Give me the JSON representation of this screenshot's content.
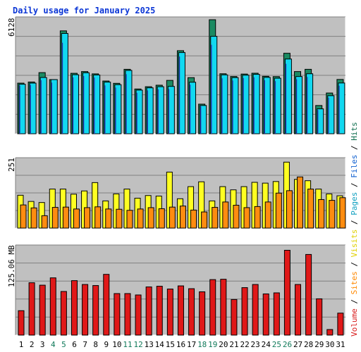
{
  "title": "Daily usage for January 2025",
  "legend": [
    {
      "label": "Volume",
      "color": "#d81818"
    },
    {
      "label": "Sites",
      "color": "#ff8800"
    },
    {
      "label": "Visits",
      "color": "#e0d000"
    },
    {
      "label": "Pages",
      "color": "#10a0c0"
    },
    {
      "label": "Files",
      "color": "#1060d0"
    },
    {
      "label": "Hits",
      "color": "#107050"
    }
  ],
  "separator": " / ",
  "colors": {
    "hits": "#1b8a62",
    "files": "#12d8f0",
    "pages": "#1f3fb0",
    "visits": "#ffff22",
    "sites": "#ff8c10",
    "volume": "#e01818",
    "panel": "#c0c0c0",
    "weekend": "#117a5a",
    "title": "#0b36d6"
  },
  "chart_data": [
    {
      "type": "bar",
      "title": "Daily usage for January 2025",
      "categories": [
        "1",
        "2",
        "3",
        "4",
        "5",
        "6",
        "7",
        "8",
        "9",
        "10",
        "11",
        "12",
        "13",
        "14",
        "15",
        "16",
        "17",
        "18",
        "19",
        "20",
        "21",
        "22",
        "23",
        "24",
        "25",
        "26",
        "27",
        "28",
        "29",
        "30",
        "31"
      ],
      "weekend_days": [
        "4",
        "5",
        "11",
        "12",
        "18",
        "19",
        "25",
        "26"
      ],
      "ylabel": "6128",
      "ylim": [
        0,
        6128
      ],
      "grid": true,
      "series": [
        {
          "name": "Hits",
          "values": [
            2721,
            2781,
            3286,
            2911,
            5530,
            3249,
            3343,
            3219,
            2835,
            2711,
            3464,
            2406,
            2529,
            2610,
            2869,
            4465,
            3016,
            1591,
            6128,
            3225,
            3077,
            3209,
            3253,
            3089,
            3072,
            4326,
            3343,
            3464,
            1519,
            2190,
            2919
          ]
        },
        {
          "name": "Files",
          "values": [
            2661,
            2721,
            3024,
            2911,
            5391,
            3173,
            3278,
            3159,
            2775,
            2638,
            3404,
            2346,
            2469,
            2529,
            2546,
            4365,
            2769,
            1520,
            5236,
            3165,
            3017,
            3149,
            3193,
            3029,
            2985,
            4017,
            3077,
            3225,
            1339,
            2047,
            2729
          ]
        },
        {
          "name": "Pages",
          "values": [
            2590,
            2620,
            2880,
            2750,
            4890,
            3030,
            3100,
            3020,
            2600,
            2480,
            3200,
            2200,
            2330,
            2390,
            2400,
            4150,
            2640,
            1480,
            4780,
            2980,
            2860,
            2990,
            3030,
            2880,
            2830,
            3760,
            2930,
            3050,
            1280,
            1940,
            2580
          ]
        }
      ]
    },
    {
      "type": "bar",
      "ylabel": "251",
      "ylim": [
        0,
        251
      ],
      "grid": true,
      "series": [
        {
          "name": "Visits",
          "values": [
            122,
            99,
            95,
            145,
            145,
            126,
            138,
            169,
            101,
            127,
            145,
            111,
            121,
            119,
            208,
            109,
            154,
            172,
            101,
            154,
            142,
            154,
            170,
            167,
            173,
            245,
            181,
            176,
            145,
            127,
            120
          ]
        },
        {
          "name": "Sites",
          "values": [
            86,
            75,
            46,
            77,
            78,
            71,
            76,
            79,
            71,
            70,
            66,
            71,
            76,
            72,
            78,
            82,
            67,
            60,
            77,
            97,
            85,
            76,
            80,
            97,
            130,
            139,
            190,
            145,
            106,
            103,
            113
          ]
        }
      ]
    },
    {
      "type": "bar",
      "ylabel": "125.06 MB",
      "ylim": [
        0,
        250
      ],
      "grid": true,
      "series": [
        {
          "name": "Volume",
          "values": [
            70,
            150,
            143,
            164,
            125,
            156,
            145,
            142,
            174,
            119,
            119,
            115,
            138,
            140,
            132,
            141,
            133,
            124,
            159,
            160,
            102,
            136,
            145,
            118,
            121,
            243,
            145,
            231,
            104,
            16,
            63
          ]
        }
      ]
    }
  ]
}
